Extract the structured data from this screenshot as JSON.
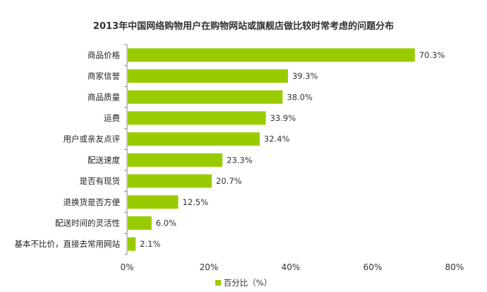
{
  "chart_data": {
    "type": "bar",
    "orientation": "horizontal",
    "title": "2013年中国网络购物用户在购物网站或旗舰店做比较时常考虑的问题分布",
    "categories": [
      "商品价格",
      "商家信誉",
      "商品质量",
      "运费",
      "用户或亲友点评",
      "配送速度",
      "是否有现货",
      "退换货是否方便",
      "配送时间的灵活性",
      "基本不比价，直接去常用网站"
    ],
    "series": [
      {
        "name": "百分比（%）",
        "values": [
          70.3,
          39.3,
          38.0,
          33.9,
          32.4,
          23.3,
          20.7,
          12.5,
          6.0,
          2.1
        ],
        "value_labels": [
          "70.3%",
          "39.3%",
          "38.0%",
          "33.9%",
          "32.4%",
          "23.3%",
          "20.7%",
          "12.5%",
          "6.0%",
          "2.1%"
        ]
      }
    ],
    "xlim": [
      0,
      80
    ],
    "xticks": [
      0,
      20,
      40,
      60,
      80
    ],
    "xtick_labels": [
      "0%",
      "20%",
      "40%",
      "60%",
      "80%"
    ],
    "grid": false,
    "legend_position": "bottom-center",
    "colors": {
      "bar": "#99CC00",
      "axis": "#888888"
    }
  }
}
